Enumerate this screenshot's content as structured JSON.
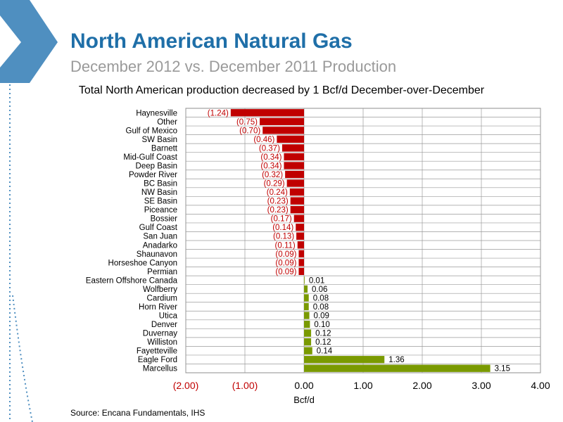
{
  "slide": {
    "title": "North American Natural Gas",
    "subtitle": "December 2012 vs. December 2011 Production",
    "source": "Source: Encana Fundamentals, IHS"
  },
  "colors": {
    "title": "#1f6fa8",
    "subtitle": "#9a9a9a",
    "negative_bar": "#c00000",
    "positive_bar": "#7a9a01",
    "negative_label": "#c00000",
    "positive_label": "#000000",
    "accent": "#5b9bd5"
  },
  "chart_data": {
    "type": "bar",
    "orientation": "horizontal",
    "title": "Total North American production decreased by 1 Bcf/d December-over-December",
    "xlabel": "Bcf/d",
    "ylabel": "",
    "xlim": [
      -2,
      4
    ],
    "xticks": [
      -2,
      -1,
      0,
      1,
      2,
      3,
      4
    ],
    "xtick_labels": [
      "(2.00)",
      "(1.00)",
      "0.00",
      "1.00",
      "2.00",
      "3.00",
      "4.00"
    ],
    "grid": true,
    "categories": [
      "Haynesville",
      "Other",
      "Gulf of Mexico",
      "SW Basin",
      "Barnett",
      "Mid-Gulf Coast",
      "Deep Basin",
      "Powder River",
      "BC Basin",
      "NW Basin",
      "SE Basin",
      "Piceance",
      "Bossier",
      "Gulf Coast",
      "San Juan",
      "Anadarko",
      "Shaunavon",
      "Horseshoe Canyon",
      "Permian",
      "Eastern Offshore Canada",
      "Wolfberry",
      "Cardium",
      "Horn River",
      "Utica",
      "Denver",
      "Duvernay",
      "Williston",
      "Fayetteville",
      "Eagle Ford",
      "Marcellus"
    ],
    "values": [
      -1.24,
      -0.75,
      -0.7,
      -0.46,
      -0.37,
      -0.34,
      -0.34,
      -0.32,
      -0.29,
      -0.24,
      -0.23,
      -0.23,
      -0.17,
      -0.14,
      -0.13,
      -0.11,
      -0.09,
      -0.09,
      -0.09,
      0.01,
      0.06,
      0.08,
      0.08,
      0.09,
      0.1,
      0.12,
      0.12,
      0.14,
      1.36,
      3.15
    ],
    "data_labels": [
      "(1.24)",
      "(0.75)",
      "(0.70)",
      "(0.46)",
      "(0.37)",
      "(0.34)",
      "(0.34)",
      "(0.32)",
      "(0.29)",
      "(0.24)",
      "(0.23)",
      "(0.23)",
      "(0.17)",
      "(0.14)",
      "(0.13)",
      "(0.11)",
      "(0.09)",
      "(0.09)",
      "(0.09)",
      "0.01",
      "0.06",
      "0.08",
      "0.08",
      "0.09",
      "0.10",
      "0.12",
      "0.12",
      "0.14",
      "1.36",
      "3.15"
    ]
  }
}
